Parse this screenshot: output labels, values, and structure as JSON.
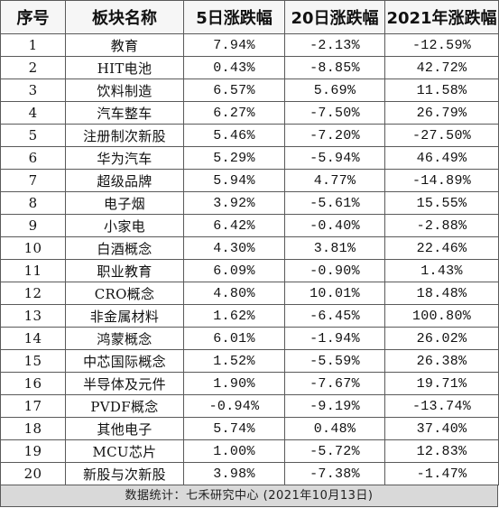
{
  "table": {
    "headers": [
      "序号",
      "板块名称",
      "5日涨跌幅",
      "20日涨跌幅",
      "2021年涨跌幅"
    ],
    "rows": [
      [
        "1",
        "教育",
        "7.94%",
        "-2.13%",
        "-12.59%"
      ],
      [
        "2",
        "HIT电池",
        "0.43%",
        "-8.85%",
        "42.72%"
      ],
      [
        "3",
        "饮料制造",
        "6.57%",
        "5.69%",
        "11.58%"
      ],
      [
        "4",
        "汽车整车",
        "6.27%",
        "-7.50%",
        "26.79%"
      ],
      [
        "5",
        "注册制次新股",
        "5.46%",
        "-7.20%",
        "-27.50%"
      ],
      [
        "6",
        "华为汽车",
        "5.29%",
        "-5.94%",
        "46.49%"
      ],
      [
        "7",
        "超级品牌",
        "5.94%",
        "4.77%",
        "-14.89%"
      ],
      [
        "8",
        "电子烟",
        "3.92%",
        "-5.61%",
        "15.55%"
      ],
      [
        "9",
        "小家电",
        "6.42%",
        "-0.40%",
        "-2.88%"
      ],
      [
        "10",
        "白酒概念",
        "4.30%",
        "3.81%",
        "22.46%"
      ],
      [
        "11",
        "职业教育",
        "6.09%",
        "-0.90%",
        "1.43%"
      ],
      [
        "12",
        "CRO概念",
        "4.80%",
        "10.01%",
        "18.48%"
      ],
      [
        "13",
        "非金属材料",
        "1.62%",
        "-6.45%",
        "100.80%"
      ],
      [
        "14",
        "鸿蒙概念",
        "6.01%",
        "-1.94%",
        "26.02%"
      ],
      [
        "15",
        "中芯国际概念",
        "1.52%",
        "-5.59%",
        "26.38%"
      ],
      [
        "16",
        "半导体及元件",
        "1.90%",
        "-7.67%",
        "19.71%"
      ],
      [
        "17",
        "PVDF概念",
        "-0.94%",
        "-9.19%",
        "-13.74%"
      ],
      [
        "18",
        "其他电子",
        "5.74%",
        "0.48%",
        "37.40%"
      ],
      [
        "19",
        "MCU芯片",
        "1.00%",
        "-5.72%",
        "12.83%"
      ],
      [
        "20",
        "新股与次新股",
        "3.98%",
        "-7.38%",
        "-1.47%"
      ]
    ]
  },
  "footer": {
    "text": "数据统计：七禾研究中心  (2021年10月13日)"
  }
}
